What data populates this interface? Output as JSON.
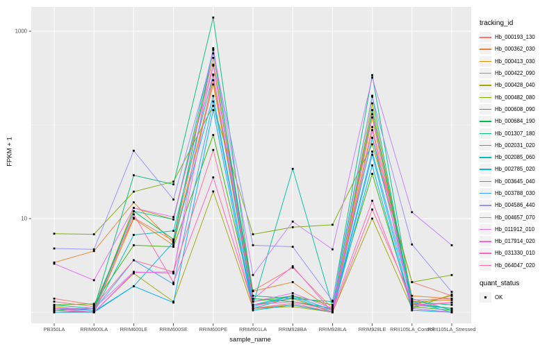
{
  "figure": {
    "y_axis": {
      "title": "FPKM + 1"
    },
    "x_axis": {
      "title": "sample_name"
    },
    "legend": {
      "tracking_title": "tracking_id",
      "quant_title": "quant_status",
      "quant_ok_label": "OK"
    },
    "colors": {
      "panel_bg": "#EBEBEB",
      "grid": "#FFFFFF",
      "tick_label": "#4D4D4D",
      "tick_mark": "#333333",
      "point": "#000000"
    }
  },
  "chart_data": {
    "type": "line",
    "title": "",
    "xlabel": "sample_name",
    "ylabel": "FPKM + 1",
    "y_scale": "log10",
    "ylim": [
      0.76,
      1830
    ],
    "grid": true,
    "legend_position": "right",
    "point_shape": "filled-black-square (quant_status = OK)",
    "y_ticks": [
      {
        "v": 10,
        "label": "10"
      },
      {
        "v": 1000,
        "label": "1000"
      }
    ],
    "y_minor": [
      1,
      100
    ],
    "categories": [
      "PB350LA",
      "RRIM600LA",
      "RRIM600LE",
      "RRIM600SE",
      "RRIM600PE",
      "RRIM901LA",
      "RRIM928BA",
      "RRIM928LA",
      "RRIM928LE",
      "RRII105LA_Control",
      "RRII105LA_Stressed"
    ],
    "series": [
      {
        "name": "Hb_000193_130",
        "color": "#F8766D",
        "values": [
          1.4,
          1.2,
          10.2,
          5.8,
          430,
          1.7,
          3.0,
          1.1,
          73,
          2.1,
          1.5
        ]
      },
      {
        "name": "Hb_000362_030",
        "color": "#EA8331",
        "values": [
          3.4,
          4.5,
          14.9,
          5.5,
          270,
          1.68,
          2.1,
          1.05,
          95,
          1.5,
          1.4
        ]
      },
      {
        "name": "Hb_000413_030",
        "color": "#D89000",
        "values": [
          1.1,
          1.0,
          10.0,
          5.2,
          300,
          1.2,
          1.4,
          1.0,
          120,
          1.3,
          1.35
        ]
      },
      {
        "name": "Hb_000422_090",
        "color": "#C09B00",
        "values": [
          1.15,
          1.05,
          13.0,
          9.8,
          520,
          1.1,
          1.2,
          1.0,
          170,
          1.2,
          1.5
        ]
      },
      {
        "name": "Hb_000428_040",
        "color": "#A3A500",
        "values": [
          1.0,
          1.0,
          2.6,
          1.3,
          19.5,
          1.1,
          1.15,
          1.0,
          10.0,
          1.1,
          1.55
        ]
      },
      {
        "name": "Hb_000482_080",
        "color": "#7CAE00",
        "values": [
          6.9,
          6.8,
          19.4,
          24.8,
          160,
          6.8,
          8.1,
          8.6,
          62,
          2.1,
          2.5
        ]
      },
      {
        "name": "Hb_000608_090",
        "color": "#39B600",
        "values": [
          1.2,
          1.23,
          5.2,
          5.0,
          78,
          1.3,
          1.5,
          1.2,
          30,
          1.15,
          1.05
        ]
      },
      {
        "name": "Hb_000684_190",
        "color": "#00BB4E",
        "values": [
          1.05,
          1.1,
          12.0,
          6.0,
          630,
          1.4,
          1.3,
          1.1,
          144,
          1.25,
          1.1
        ]
      },
      {
        "name": "Hb_001307_180",
        "color": "#00BF7D",
        "values": [
          1.2,
          1.1,
          29,
          23.2,
          1400,
          1.5,
          1.4,
          1.3,
          340,
          1.3,
          1.2
        ]
      },
      {
        "name": "Hb_002031_020",
        "color": "#00C1A3",
        "values": [
          1.1,
          1.05,
          12.0,
          9.8,
          640,
          1.2,
          34,
          1.15,
          205,
          1.2,
          1.1
        ]
      },
      {
        "name": "Hb_002085_060",
        "color": "#00BFC4",
        "values": [
          1.0,
          1.0,
          6.7,
          7.4,
          345,
          1.2,
          1.5,
          1.05,
          73,
          1.4,
          1.05
        ]
      },
      {
        "name": "Hb_002785_020",
        "color": "#00BAE0",
        "values": [
          1.05,
          1.0,
          1.9,
          5.6,
          204,
          1.1,
          1.45,
          1.0,
          48,
          1.1,
          1.0
        ]
      },
      {
        "name": "Hb_003645_040",
        "color": "#00B0F6",
        "values": [
          1.0,
          1.02,
          1.9,
          1.27,
          144,
          1.05,
          1.2,
          1.0,
          37,
          1.05,
          1.0
        ]
      },
      {
        "name": "Hb_003788_030",
        "color": "#35A2FF",
        "values": [
          1.1,
          1.05,
          3.6,
          2.0,
          178,
          1.15,
          1.5,
          1.05,
          52,
          1.3,
          1.0
        ]
      },
      {
        "name": "Hb_004586_440",
        "color": "#9590FF",
        "values": [
          4.8,
          4.7,
          53,
          16.0,
          580,
          5.2,
          5.0,
          1.33,
          200,
          5.3,
          1.65
        ]
      },
      {
        "name": "Hb_004657_070",
        "color": "#C77CFF",
        "values": [
          1.1,
          1.1,
          2.7,
          2.6,
          660,
          2.5,
          9.3,
          4.7,
          320,
          11.7,
          5.2
        ]
      },
      {
        "name": "Hb_011912_010",
        "color": "#E76BF3",
        "values": [
          3.3,
          2.2,
          13.0,
          10.4,
          440,
          1.3,
          1.6,
          1.1,
          130,
          1.1,
          1.0
        ]
      },
      {
        "name": "Hb_017914_020",
        "color": "#FA62DB",
        "values": [
          1.1,
          1.0,
          2.66,
          2.7,
          340,
          1.38,
          3.1,
          1.0,
          88,
          1.15,
          1.27
        ]
      },
      {
        "name": "Hb_031330_010",
        "color": "#FF62BC",
        "values": [
          1.05,
          1.0,
          11.1,
          2.08,
          27.5,
          1.2,
          1.3,
          1.05,
          15.5,
          1.2,
          1.27
        ]
      },
      {
        "name": "Hb_064047_020",
        "color": "#FF6A98",
        "values": [
          1.3,
          1.15,
          3.6,
          2.7,
          54,
          1.1,
          1.25,
          1.0,
          12.5,
          1.35,
          1.4
        ]
      }
    ]
  }
}
